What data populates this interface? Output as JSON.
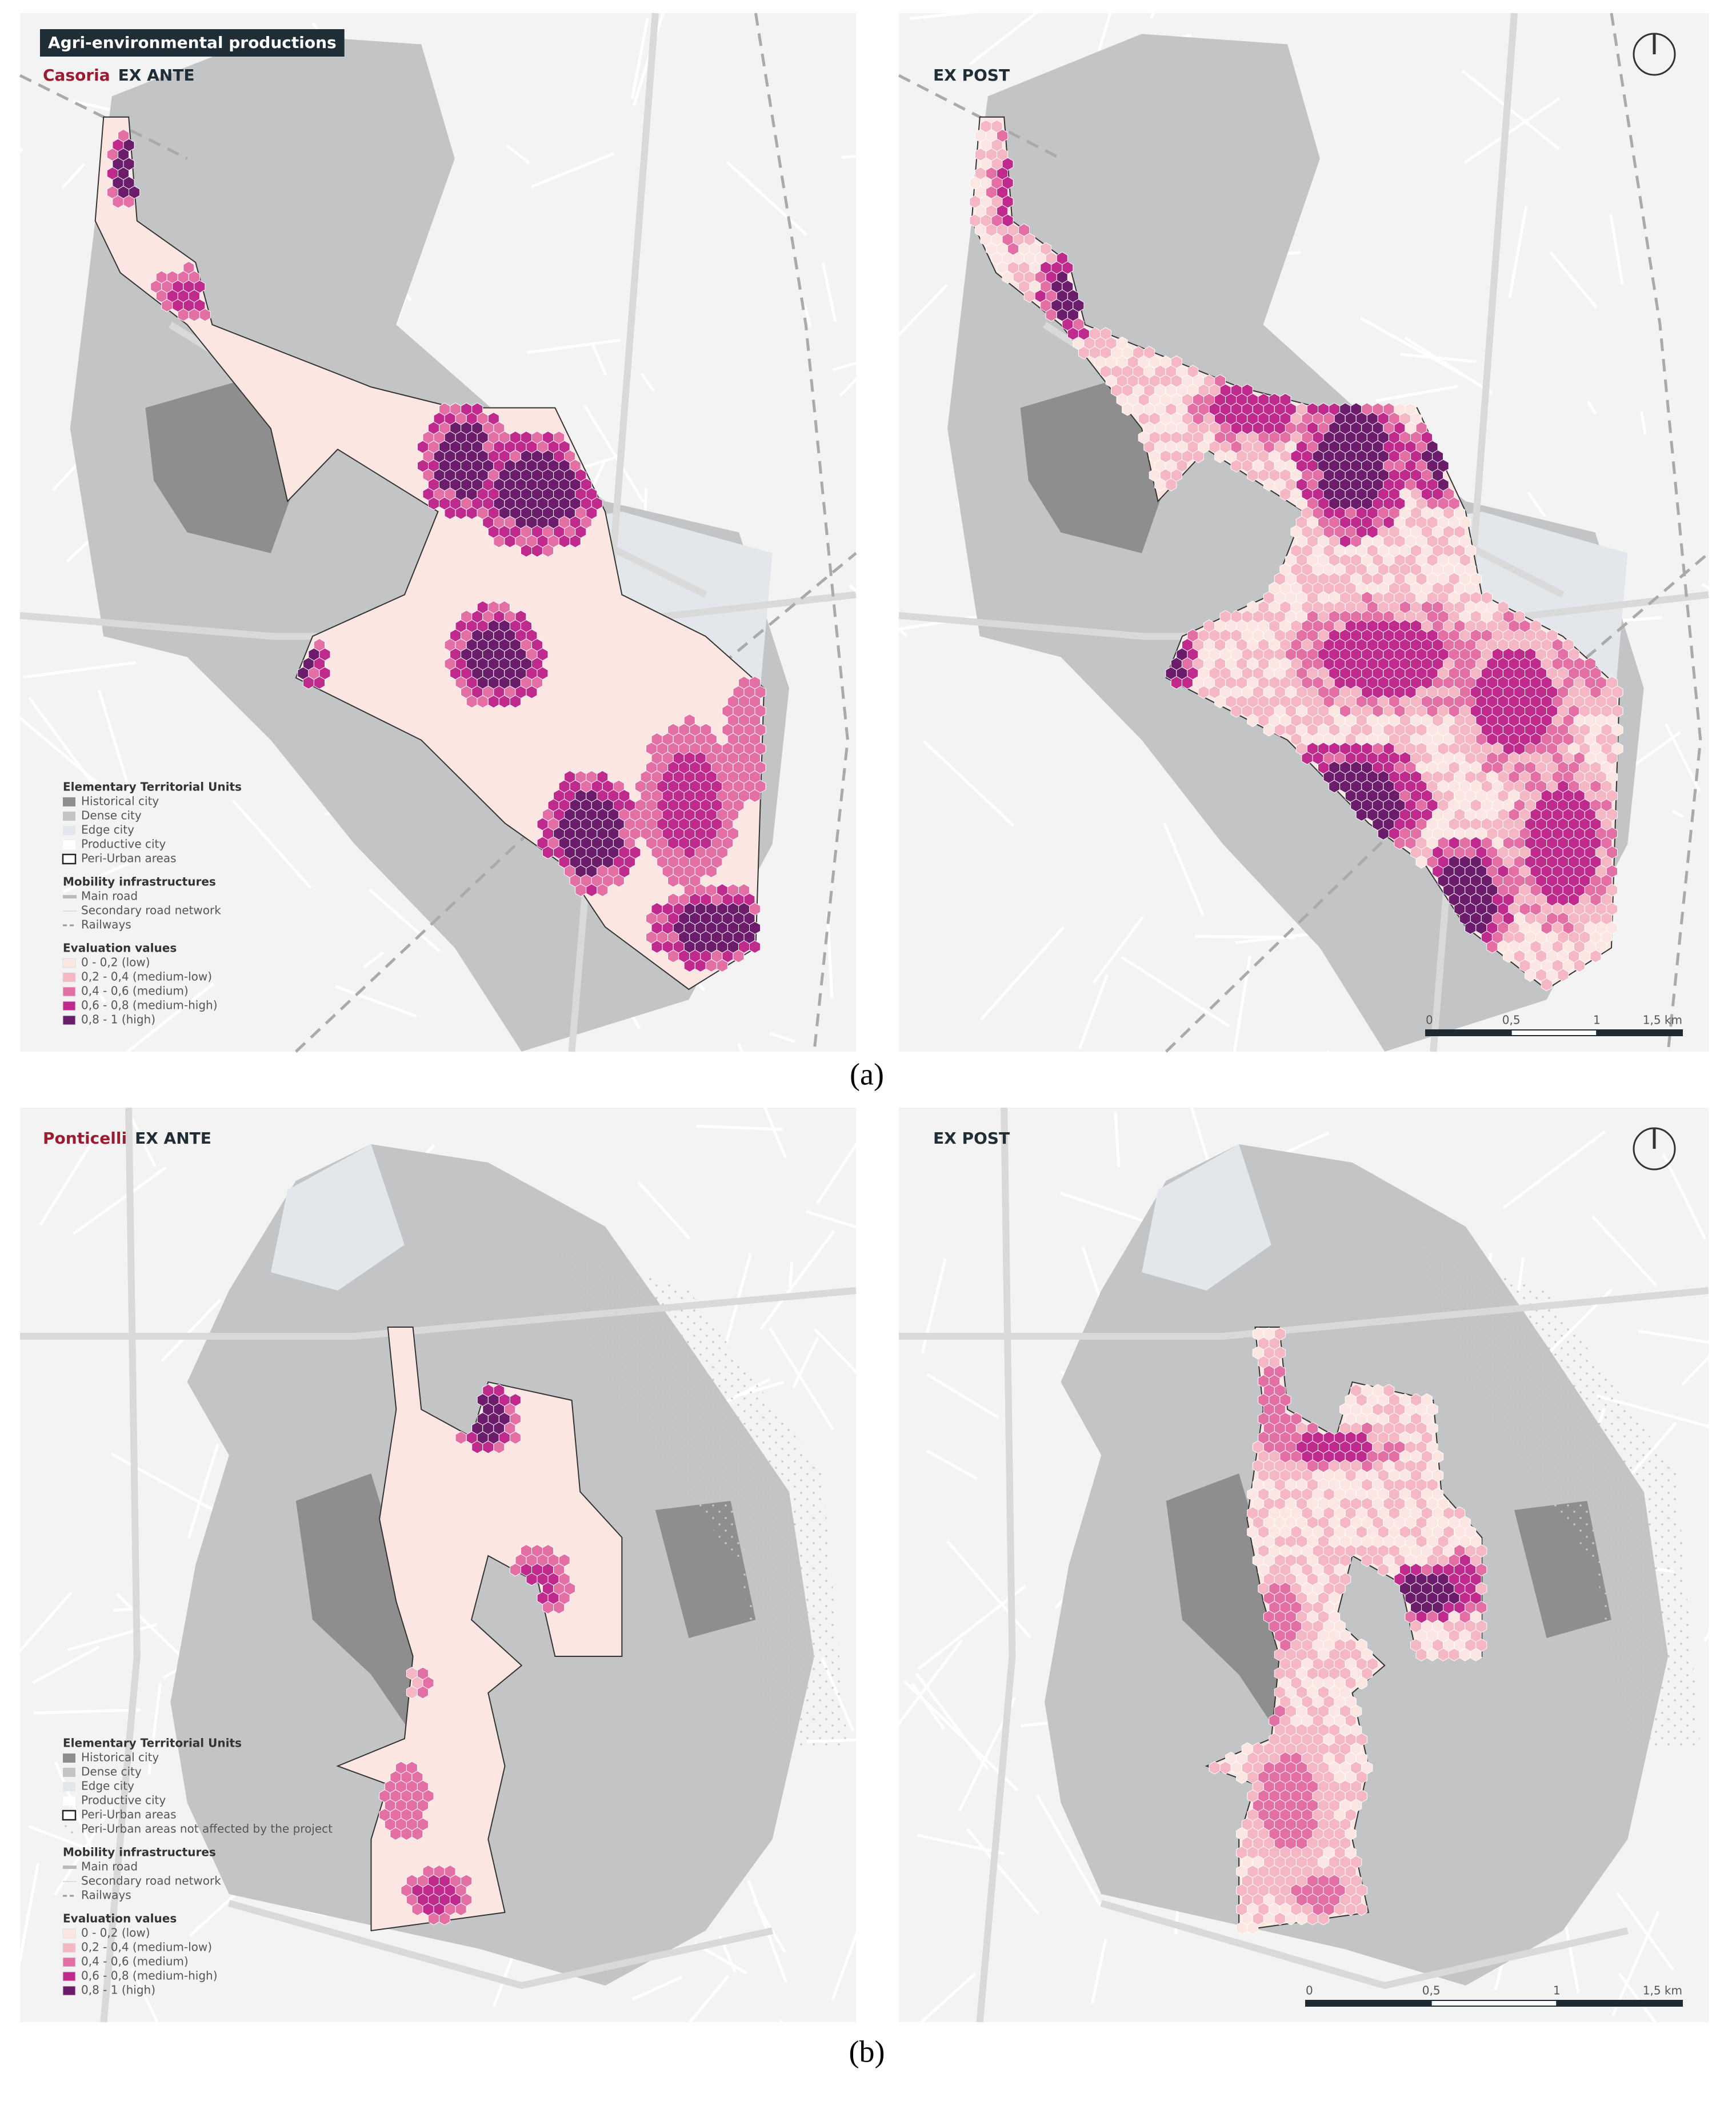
{
  "figure": {
    "title": "Agri-environmental productions",
    "panels": [
      {
        "caption": "(a)",
        "place": "Casoria",
        "ex_ante": "EX ANTE",
        "ex_post": "EX POST",
        "legend": {
          "units_title": "Elementary Territorial Units",
          "units": [
            "Historical city",
            "Dense city",
            "Edge city",
            "Productive city",
            "Peri-Urban areas"
          ],
          "mobility_title": "Mobility infrastructures",
          "mobility": [
            "Main road",
            "Secondary road network",
            "Railways"
          ],
          "evaluation_title": "Evaluation values",
          "evaluation": [
            "0 - 0,2 (low)",
            "0,2 - 0,4 (medium-low)",
            "0,4 - 0,6 (medium)",
            "0,6 - 0,8 (medium-high)",
            "0,8 - 1 (high)"
          ]
        },
        "scale": [
          "0",
          "0,5",
          "1",
          "1,5 km"
        ]
      },
      {
        "caption": "(b)",
        "place": "Ponticelli",
        "ex_ante": "EX ANTE",
        "ex_post": "EX POST",
        "legend": {
          "units_title": "Elementary Territorial Units",
          "units": [
            "Historical city",
            "Dense city",
            "Edge city",
            "Productive city",
            "Peri-Urban areas",
            "Peri-Urban areas not affected by the project"
          ],
          "mobility_title": "Mobility infrastructures",
          "mobility": [
            "Main road",
            "Secondary road network",
            "Railways"
          ],
          "evaluation_title": "Evaluation values",
          "evaluation": [
            "0 - 0,2 (low)",
            "0,2 - 0,4 (medium-low)",
            "0,4 - 0,6 (medium)",
            "0,6 - 0,8 (medium-high)",
            "0,8 - 1 (high)"
          ]
        },
        "scale": [
          "0",
          "0,5",
          "1",
          "1,5 km"
        ]
      }
    ]
  }
}
